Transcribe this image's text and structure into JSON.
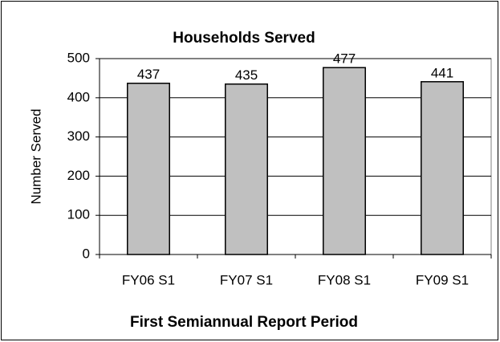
{
  "chart_data": {
    "type": "bar",
    "title": "Households Served",
    "x_label": "First Semiannual Report Period",
    "y_label": "Number Served",
    "categories": [
      "FY06 S1",
      "FY07 S1",
      "FY08 S1",
      "FY09 S1"
    ],
    "values": [
      437,
      435,
      477,
      441
    ],
    "color": "#c0c0c0",
    "ylim": [
      0,
      500
    ],
    "yticks": [
      0,
      100,
      200,
      300,
      400,
      500
    ],
    "grid": true,
    "data_labels": true
  }
}
